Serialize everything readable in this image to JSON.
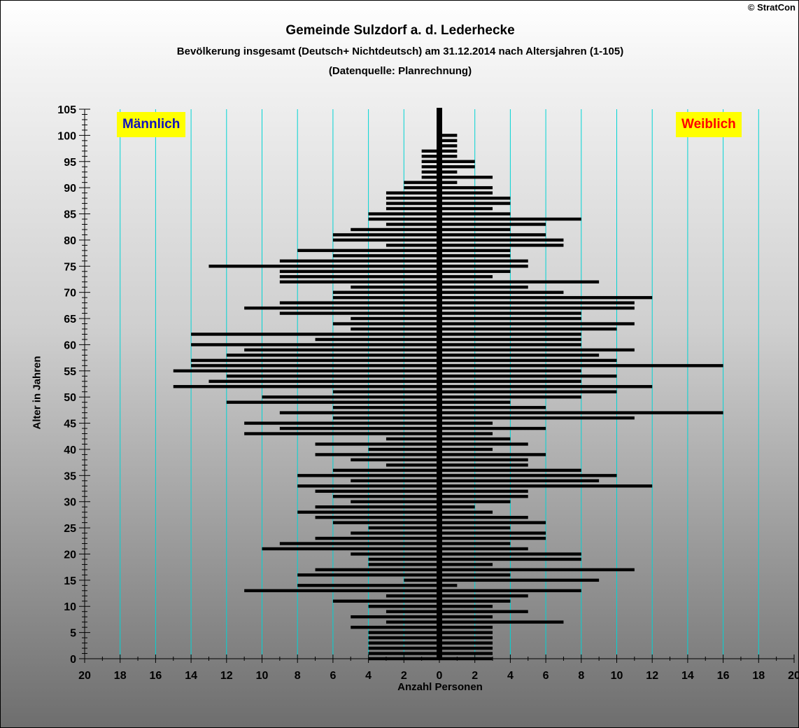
{
  "copyright": "© StratCon",
  "chart_data": {
    "type": "bar",
    "subtype": "population-pyramid",
    "title": "Gemeinde Sulzdorf a. d. Lederhecke",
    "subtitle": "Bevölkerung insgesamt (Deutsch+ Nichtdeutsch) am 31.12.2014 nach Altersjahren (1-105)",
    "source": "(Datenquelle: Planrechnung)",
    "xlabel": "Anzahl Personen",
    "ylabel": "Alter in Jahren",
    "xlim": [
      -20,
      20
    ],
    "ylim": [
      0,
      105
    ],
    "x_ticks": [
      "20",
      "18",
      "16",
      "14",
      "12",
      "10",
      "8",
      "6",
      "4",
      "2",
      "0",
      "2",
      "4",
      "6",
      "8",
      "10",
      "12",
      "14",
      "16",
      "18",
      "20"
    ],
    "y_ticks": [
      "0",
      "5",
      "10",
      "15",
      "20",
      "25",
      "30",
      "35",
      "40",
      "45",
      "50",
      "55",
      "60",
      "65",
      "70",
      "75",
      "80",
      "85",
      "90",
      "95",
      "100",
      "105"
    ],
    "grid": "vertical",
    "legend": [
      {
        "label": "Männlich",
        "side": "left",
        "color": "#1010c0"
      },
      {
        "label": "Weiblich",
        "side": "right",
        "color": "#ff0000"
      }
    ],
    "ages": [
      0,
      1,
      2,
      3,
      4,
      5,
      6,
      7,
      8,
      9,
      10,
      11,
      12,
      13,
      14,
      15,
      16,
      17,
      18,
      19,
      20,
      21,
      22,
      23,
      24,
      25,
      26,
      27,
      28,
      29,
      30,
      31,
      32,
      33,
      34,
      35,
      36,
      37,
      38,
      39,
      40,
      41,
      42,
      43,
      44,
      45,
      46,
      47,
      48,
      49,
      50,
      51,
      52,
      53,
      54,
      55,
      56,
      57,
      58,
      59,
      60,
      61,
      62,
      63,
      64,
      65,
      66,
      67,
      68,
      69,
      70,
      71,
      72,
      73,
      74,
      75,
      76,
      77,
      78,
      79,
      80,
      81,
      82,
      83,
      84,
      85,
      86,
      87,
      88,
      89,
      90,
      91,
      92,
      93,
      94,
      95,
      96,
      97,
      98,
      99,
      100
    ],
    "series": [
      {
        "name": "Männlich",
        "values": [
          4,
          4,
          4,
          4,
          4,
          4,
          5,
          3,
          5,
          3,
          4,
          6,
          3,
          11,
          8,
          2,
          8,
          7,
          4,
          4,
          5,
          10,
          9,
          7,
          5,
          4,
          6,
          7,
          8,
          7,
          5,
          6,
          7,
          8,
          5,
          8,
          6,
          3,
          5,
          7,
          4,
          7,
          3,
          11,
          9,
          11,
          6,
          9,
          6,
          12,
          10,
          6,
          15,
          13,
          12,
          15,
          14,
          14,
          12,
          11,
          14,
          7,
          14,
          5,
          6,
          5,
          9,
          11,
          9,
          6,
          6,
          5,
          9,
          9,
          9,
          13,
          9,
          6,
          8,
          3,
          6,
          6,
          5,
          3,
          4,
          4,
          3,
          3,
          3,
          3,
          2,
          2,
          1,
          1,
          1,
          1,
          1,
          1,
          0,
          0,
          0
        ]
      },
      {
        "name": "Weiblich",
        "values": [
          3,
          3,
          3,
          3,
          3,
          3,
          3,
          7,
          3,
          5,
          3,
          4,
          5,
          8,
          1,
          9,
          4,
          11,
          3,
          8,
          8,
          5,
          4,
          6,
          6,
          4,
          6,
          5,
          3,
          2,
          4,
          5,
          5,
          12,
          9,
          10,
          8,
          5,
          5,
          6,
          3,
          5,
          4,
          3,
          6,
          3,
          11,
          16,
          6,
          4,
          8,
          10,
          12,
          8,
          10,
          8,
          16,
          10,
          9,
          11,
          8,
          8,
          8,
          10,
          11,
          8,
          8,
          11,
          11,
          12,
          7,
          5,
          9,
          3,
          4,
          5,
          5,
          4,
          4,
          7,
          7,
          6,
          4,
          6,
          8,
          4,
          3,
          4,
          4,
          3,
          3,
          1,
          3,
          1,
          2,
          2,
          1,
          1,
          1,
          1,
          1
        ]
      }
    ]
  }
}
